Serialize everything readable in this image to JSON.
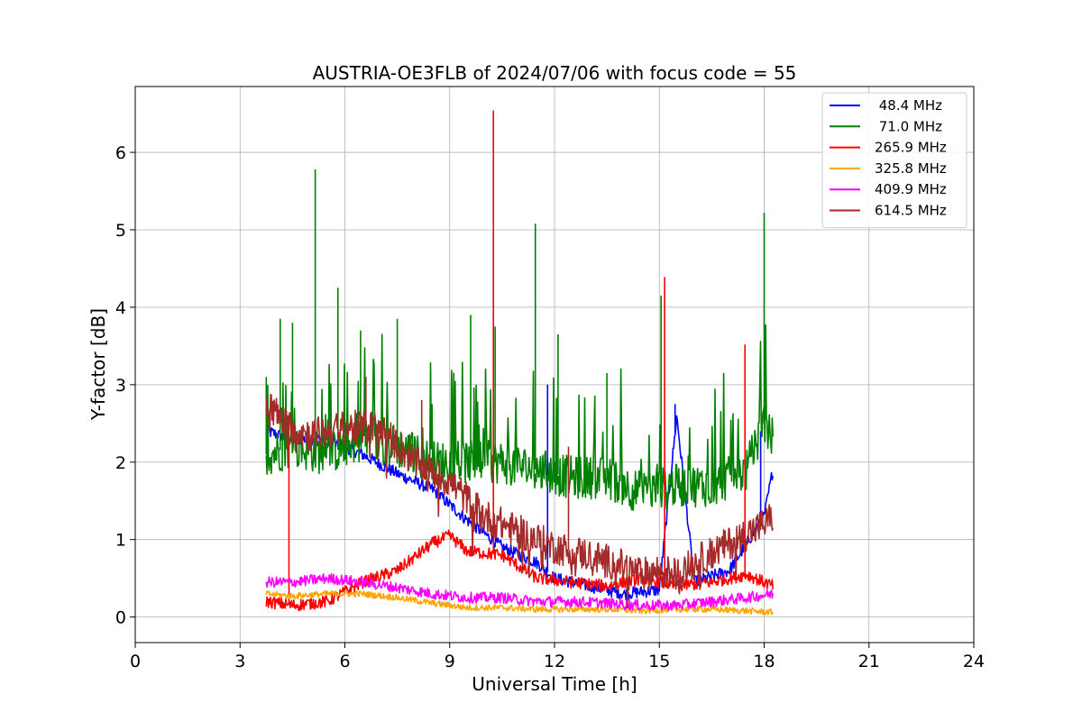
{
  "chart_data": {
    "type": "line",
    "title": "AUSTRIA-OE3FLB of 2024/07/06 with focus code = 55",
    "xlabel": "Universal Time [h]",
    "ylabel": "Y-factor [dB]",
    "xlim": [
      0,
      24
    ],
    "ylim": [
      -0.33,
      6.85
    ],
    "xticks": [
      0,
      3,
      6,
      9,
      12,
      15,
      18,
      21,
      24
    ],
    "yticks": [
      0,
      1,
      2,
      3,
      4,
      5,
      6
    ],
    "grid": true,
    "legend_position": "top-right",
    "series": [
      {
        "name": " 48.4 MHz",
        "color": "#0000ff",
        "x": [
          3.75,
          4.5,
          5.5,
          6.5,
          7.5,
          8.5,
          9.5,
          10.5,
          11.5,
          12.0,
          13.0,
          14.0,
          15.0,
          15.5,
          16.0,
          17.0,
          18.0,
          18.25
        ],
        "y": [
          2.4,
          2.3,
          2.3,
          2.1,
          1.85,
          1.65,
          1.25,
          0.9,
          0.7,
          0.5,
          0.4,
          0.3,
          0.35,
          2.6,
          0.45,
          0.6,
          1.3,
          1.9
        ]
      },
      {
        "name": " 71.0 MHz",
        "color": "#008000",
        "x": [
          3.75,
          4.5,
          5.5,
          6.5,
          7.5,
          8.5,
          9.5,
          10.5,
          11.5,
          12.5,
          13.5,
          14.5,
          15.5,
          16.5,
          17.5,
          18.0,
          18.25
        ],
        "y": [
          2.1,
          2.2,
          2.1,
          2.3,
          2.2,
          2.0,
          2.0,
          2.0,
          1.9,
          1.8,
          1.8,
          1.6,
          1.7,
          1.7,
          1.9,
          2.5,
          2.3
        ]
      },
      {
        "name": "265.9 MHz",
        "color": "#ff0000",
        "x": [
          3.75,
          4.5,
          5.5,
          6.5,
          7.5,
          8.5,
          9.0,
          9.5,
          10.5,
          11.5,
          12.5,
          13.5,
          14.5,
          15.5,
          16.5,
          17.5,
          18.25
        ],
        "y": [
          0.2,
          0.15,
          0.2,
          0.45,
          0.6,
          0.95,
          1.05,
          0.85,
          0.8,
          0.5,
          0.45,
          0.4,
          0.5,
          0.4,
          0.45,
          0.55,
          0.4
        ]
      },
      {
        "name": "325.8 MHz",
        "color": "#ffa500",
        "x": [
          3.75,
          4.5,
          5.5,
          6.5,
          7.5,
          8.5,
          9.5,
          10.5,
          11.5,
          12.5,
          13.5,
          14.5,
          15.5,
          16.5,
          17.5,
          18.25
        ],
        "y": [
          0.3,
          0.27,
          0.3,
          0.3,
          0.25,
          0.18,
          0.12,
          0.12,
          0.1,
          0.1,
          0.1,
          0.08,
          0.1,
          0.1,
          0.08,
          0.06
        ]
      },
      {
        "name": "409.9 MHz",
        "color": "#ff00ff",
        "x": [
          3.75,
          4.5,
          5.5,
          6.5,
          7.5,
          8.5,
          9.5,
          10.5,
          11.5,
          12.5,
          13.5,
          14.5,
          15.5,
          16.5,
          17.5,
          18.25
        ],
        "y": [
          0.45,
          0.45,
          0.5,
          0.45,
          0.38,
          0.3,
          0.25,
          0.25,
          0.2,
          0.2,
          0.18,
          0.15,
          0.15,
          0.2,
          0.25,
          0.3
        ]
      },
      {
        "name": "614.5 MHz",
        "color": "#a52a2a",
        "x": [
          3.75,
          4.25,
          5.0,
          6.0,
          7.0,
          8.0,
          9.0,
          10.0,
          11.0,
          12.0,
          13.0,
          14.0,
          14.5,
          15.0,
          15.5,
          16.0,
          17.0,
          18.0,
          18.25
        ],
        "y": [
          2.8,
          2.5,
          2.35,
          2.45,
          2.45,
          2.0,
          1.75,
          1.3,
          1.1,
          0.9,
          0.8,
          0.65,
          0.55,
          0.6,
          0.55,
          0.7,
          0.95,
          1.2,
          1.3
        ]
      }
    ],
    "spikes": [
      {
        "series": " 71.0 MHz",
        "x": [
          3.75,
          4.15,
          4.5,
          5.15,
          5.8,
          6.45,
          7.5,
          9.6,
          10.3,
          11.45,
          12.1,
          13.5,
          15.05,
          18.0
        ],
        "y": [
          3.1,
          3.85,
          3.8,
          5.78,
          4.25,
          3.7,
          3.85,
          3.9,
          3.75,
          5.08,
          3.65,
          3.15,
          4.15,
          5.22
        ]
      },
      {
        "series": "265.9 MHz",
        "x": [
          4.4,
          10.25,
          15.15,
          17.45
        ],
        "y": [
          2.3,
          6.54,
          4.39,
          3.52
        ]
      },
      {
        "series": " 48.4 MHz",
        "x": [
          11.8,
          15.45,
          17.9
        ],
        "y": [
          3.0,
          2.75,
          2.4
        ]
      },
      {
        "series": "614.5 MHz",
        "x": [
          6.6,
          8.2,
          12.4
        ],
        "y": [
          3.1,
          2.8,
          2.2
        ]
      }
    ]
  }
}
